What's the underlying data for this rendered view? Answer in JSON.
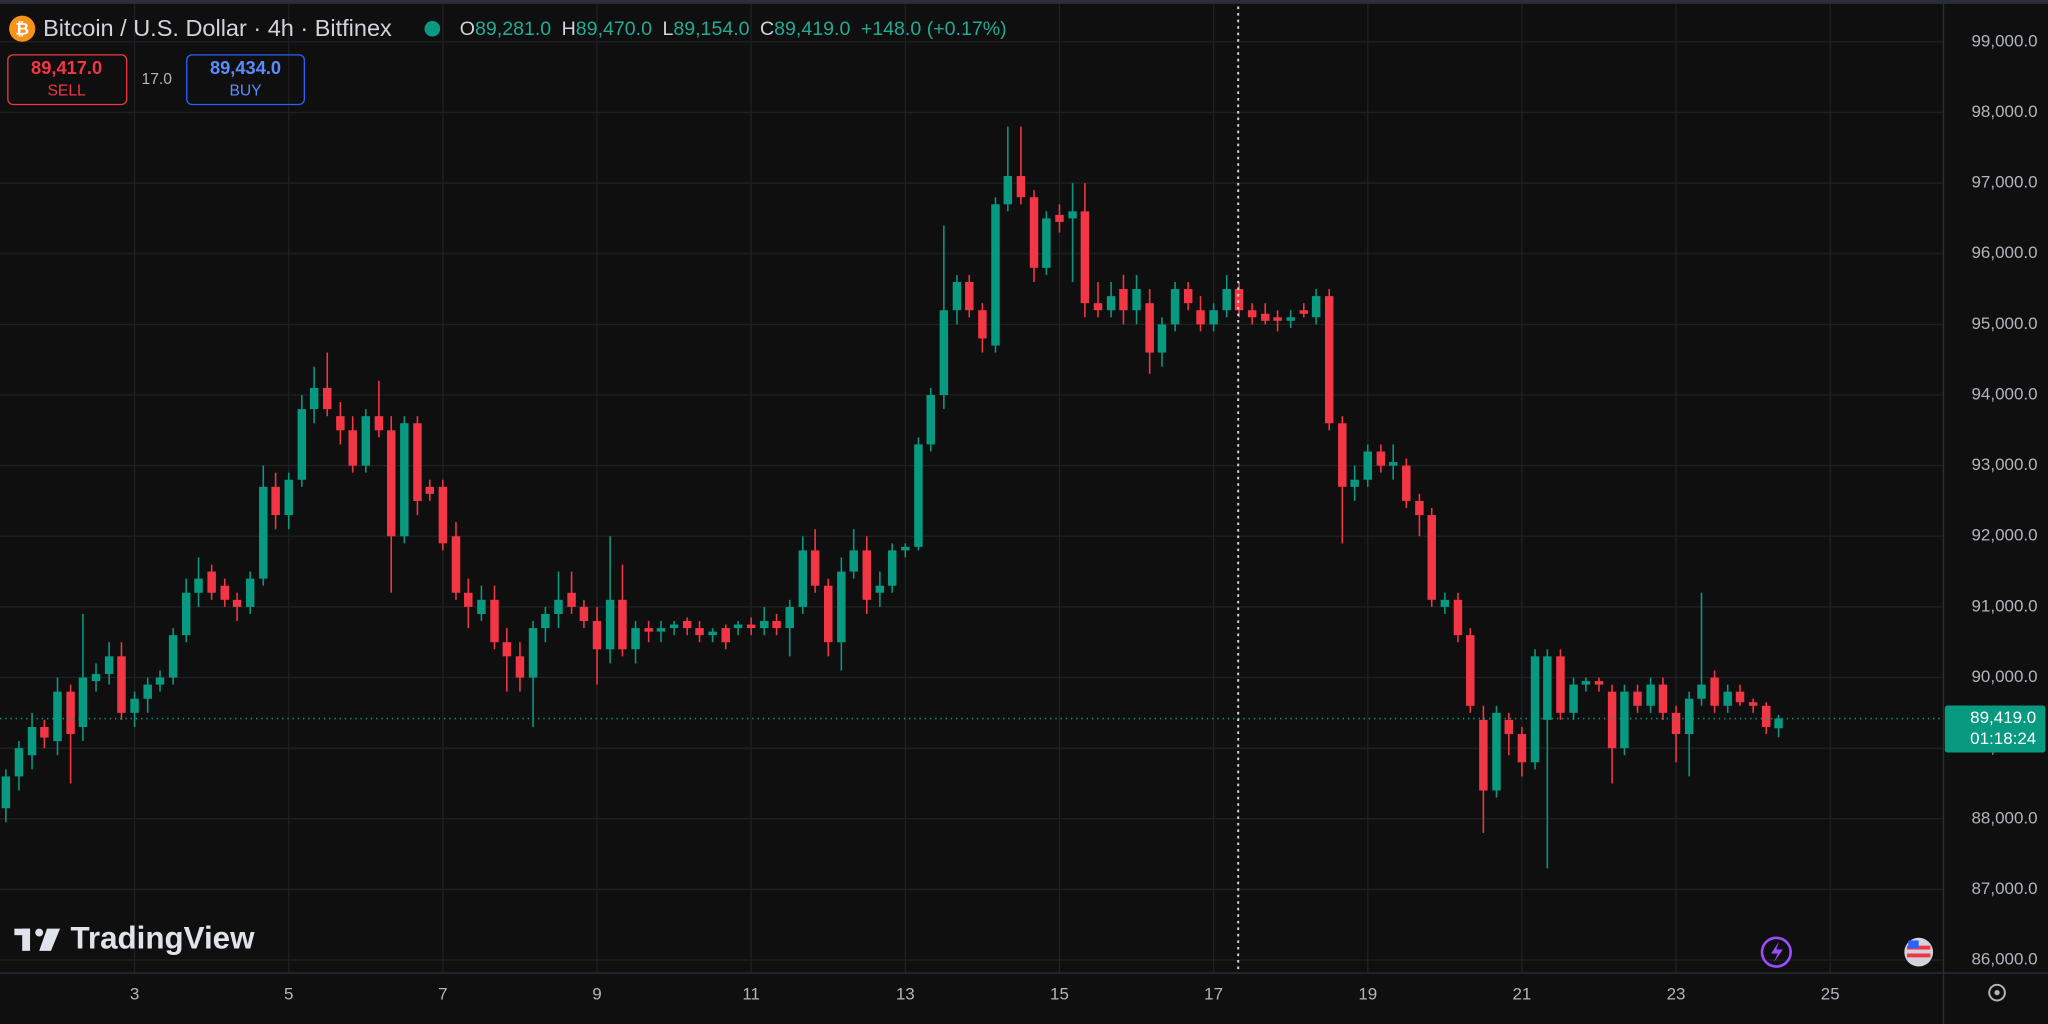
{
  "header": {
    "title": "Bitcoin / U.S. Dollar · 4h · Bitfinex",
    "ohlc": [
      {
        "key": "O",
        "value": 89281,
        "label": "89,281.0"
      },
      {
        "key": "H",
        "value": 89470,
        "label": "89,470.0"
      },
      {
        "key": "L",
        "value": 89154,
        "label": "89,154.0"
      },
      {
        "key": "C",
        "value": 89419,
        "label": "89,419.0"
      }
    ],
    "change": "+148.0 (+0.17%)"
  },
  "trade": {
    "sell": {
      "value": 89417,
      "label": "89,417.0",
      "action": "SELL"
    },
    "spread": {
      "value": 17,
      "label": "17.0"
    },
    "buy": {
      "value": 89434,
      "label": "89,434.0",
      "action": "BUY"
    }
  },
  "brand": "TradingView",
  "chart_data": {
    "type": "candlestick",
    "x": [
      1.33,
      1.5,
      1.67,
      1.83,
      2,
      2.17,
      2.33,
      2.5,
      2.67,
      2.83,
      3,
      3.17,
      3.33,
      3.5,
      3.67,
      3.83,
      4,
      4.17,
      4.33,
      4.5,
      4.67,
      4.83,
      5,
      5.17,
      5.33,
      5.5,
      5.67,
      5.83,
      6,
      6.17,
      6.33,
      6.5,
      6.67,
      6.83,
      7,
      7.17,
      7.33,
      7.5,
      7.67,
      7.83,
      8,
      8.17,
      8.33,
      8.5,
      8.67,
      8.83,
      9,
      9.17,
      9.33,
      9.5,
      9.67,
      9.83,
      10,
      10.17,
      10.33,
      10.5,
      10.67,
      10.83,
      11,
      11.17,
      11.33,
      11.5,
      11.67,
      11.83,
      12,
      12.17,
      12.33,
      12.5,
      12.67,
      12.83,
      13,
      13.17,
      13.33,
      13.5,
      13.67,
      13.83,
      14,
      14.17,
      14.33,
      14.5,
      14.67,
      14.83,
      15,
      15.17,
      15.33,
      15.5,
      15.67,
      15.83,
      16,
      16.17,
      16.33,
      16.5,
      16.67,
      16.83,
      17,
      17.17,
      17.33,
      17.5,
      17.67,
      17.83,
      18,
      18.17,
      18.33,
      18.5,
      18.67,
      18.83,
      19,
      19.17,
      19.33,
      19.5,
      19.67,
      19.83,
      20,
      20.17,
      20.33,
      20.5,
      20.67,
      20.83,
      21,
      21.17,
      21.33,
      21.5,
      21.67,
      21.83,
      22,
      22.17,
      22.33,
      22.5,
      22.67,
      22.83,
      23,
      23.17,
      23.33,
      23.5,
      23.67,
      23.83,
      24,
      24.17,
      24.33
    ],
    "open": [
      88150,
      88600,
      88900,
      89300,
      89100,
      89800,
      89300,
      89950,
      90050,
      90300,
      89500,
      89700,
      89900,
      90000,
      90600,
      91200,
      91500,
      91300,
      91100,
      91000,
      91400,
      92700,
      92300,
      92800,
      93800,
      94100,
      93700,
      93500,
      93000,
      93700,
      93500,
      92000,
      93600,
      92700,
      92700,
      92000,
      91200,
      90900,
      91100,
      90500,
      90300,
      90000,
      90700,
      90900,
      91200,
      91000,
      90800,
      90400,
      91100,
      90400,
      90700,
      90650,
      90700,
      90800,
      90700,
      90600,
      90700,
      90700,
      90750,
      90700,
      90800,
      90700,
      91000,
      91800,
      91300,
      90500,
      91500,
      91800,
      91200,
      91300,
      91800,
      91850,
      93300,
      94000,
      95200,
      95600,
      95200,
      94700,
      96700,
      97100,
      96800,
      95800,
      96550,
      96500,
      96600,
      95300,
      95200,
      95500,
      95200,
      95300,
      94600,
      95000,
      95500,
      95200,
      95000,
      95200,
      95500,
      95200,
      95150,
      95100,
      95050,
      95200,
      95100,
      95400,
      93600,
      92700,
      92800,
      93200,
      93000,
      93000,
      92500,
      92300,
      91000,
      91100,
      90600,
      89400,
      88400,
      89400,
      89200,
      88800,
      89400,
      90300,
      89500,
      89900,
      89950,
      89800,
      89000,
      89800,
      89600,
      89900,
      89500,
      89200,
      89700,
      90000,
      89600,
      89800,
      89650,
      89600,
      89281
    ],
    "high": [
      88700,
      89100,
      89500,
      89400,
      90000,
      89900,
      90900,
      90200,
      90500,
      90500,
      89800,
      90000,
      90100,
      90700,
      91400,
      91700,
      91600,
      91400,
      91200,
      91500,
      93000,
      92900,
      92900,
      94000,
      94400,
      94600,
      93900,
      93700,
      93800,
      94200,
      93700,
      93700,
      93700,
      92800,
      92800,
      92200,
      91400,
      91300,
      91300,
      90700,
      90500,
      90800,
      91000,
      91500,
      91500,
      91100,
      91000,
      92000,
      91600,
      90800,
      90800,
      90800,
      90800,
      90850,
      90800,
      90700,
      90750,
      90800,
      90850,
      91000,
      90900,
      91100,
      92000,
      92100,
      91400,
      91700,
      92100,
      92000,
      91500,
      91900,
      91900,
      93400,
      94100,
      96400,
      95700,
      95700,
      95300,
      96800,
      97800,
      97800,
      96900,
      96600,
      96700,
      97000,
      97000,
      95600,
      95600,
      95700,
      95700,
      95500,
      95100,
      95600,
      95600,
      95400,
      95300,
      95700,
      95600,
      95300,
      95300,
      95200,
      95200,
      95300,
      95500,
      95500,
      93700,
      93000,
      93300,
      93300,
      93300,
      93100,
      92600,
      92400,
      91200,
      91200,
      90700,
      89600,
      89600,
      89500,
      89300,
      90400,
      90400,
      90400,
      90000,
      90000,
      90000,
      89900,
      89900,
      89900,
      90000,
      90000,
      89600,
      89800,
      91200,
      90100,
      89900,
      89900,
      89700,
      89650,
      89470
    ],
    "low": [
      87950,
      88400,
      88700,
      89000,
      88900,
      88500,
      89100,
      89800,
      89900,
      89400,
      89300,
      89500,
      89800,
      89900,
      90500,
      91000,
      91100,
      91000,
      90800,
      90900,
      91300,
      92100,
      92100,
      92700,
      93600,
      93700,
      93300,
      92900,
      92900,
      93400,
      91200,
      91900,
      92300,
      92500,
      91800,
      91100,
      90700,
      90800,
      90400,
      89800,
      89800,
      89300,
      90500,
      90700,
      90900,
      90700,
      89900,
      90200,
      90300,
      90200,
      90500,
      90500,
      90600,
      90600,
      90500,
      90500,
      90400,
      90600,
      90600,
      90600,
      90600,
      90300,
      90900,
      91200,
      90300,
      90100,
      91400,
      90900,
      91000,
      91200,
      91700,
      91800,
      93200,
      93800,
      95000,
      95100,
      94600,
      94600,
      96600,
      96700,
      95600,
      95700,
      96300,
      95600,
      95100,
      95100,
      95100,
      95000,
      95000,
      94300,
      94400,
      94900,
      95200,
      94900,
      94900,
      95100,
      95100,
      95000,
      95000,
      94900,
      94950,
      95100,
      95000,
      93500,
      91900,
      92500,
      92700,
      92900,
      92800,
      92400,
      92000,
      91000,
      90900,
      90500,
      89500,
      87800,
      88300,
      88900,
      88600,
      88700,
      87300,
      89400,
      89400,
      89800,
      89800,
      88500,
      88900,
      89500,
      89500,
      89400,
      88800,
      88600,
      89600,
      89500,
      89500,
      89600,
      89500,
      89200,
      89154
    ],
    "close": [
      88600,
      89000,
      89300,
      89150,
      89800,
      89200,
      90000,
      90050,
      90300,
      89500,
      89700,
      89900,
      90000,
      90600,
      91200,
      91400,
      91200,
      91100,
      91000,
      91400,
      92700,
      92300,
      92800,
      93800,
      94100,
      93800,
      93500,
      93000,
      93700,
      93500,
      92000,
      93600,
      92500,
      92600,
      91900,
      91200,
      91000,
      91100,
      90500,
      90300,
      90000,
      90700,
      90900,
      91100,
      91000,
      90800,
      90400,
      91100,
      90400,
      90700,
      90650,
      90700,
      90750,
      90700,
      90600,
      90650,
      90500,
      90750,
      90700,
      90800,
      90700,
      91000,
      91800,
      91300,
      90500,
      91500,
      91800,
      91100,
      91300,
      91800,
      91850,
      93300,
      94000,
      95200,
      95600,
      95200,
      94800,
      96700,
      97100,
      96800,
      95800,
      96500,
      96450,
      96600,
      95300,
      95200,
      95400,
      95200,
      95500,
      94600,
      95000,
      95500,
      95300,
      95000,
      95200,
      95500,
      95200,
      95100,
      95050,
      95050,
      95100,
      95150,
      95400,
      93600,
      92700,
      92800,
      93200,
      93000,
      93050,
      92500,
      92300,
      91100,
      91100,
      90600,
      89600,
      88400,
      89500,
      89200,
      88800,
      90300,
      90300,
      89500,
      89900,
      89950,
      89900,
      89000,
      89800,
      89600,
      89900,
      89500,
      89200,
      89700,
      89900,
      89600,
      89800,
      89650,
      89600,
      89300,
      89419
    ],
    "xlim": [
      1.254,
      26.47
    ],
    "ylim": [
      85816,
      99592
    ],
    "xticks": [
      3,
      5,
      7,
      9,
      11,
      13,
      15,
      17,
      19,
      21,
      23,
      25
    ],
    "yticks": [
      {
        "value": 99000,
        "label": "99,000.0"
      },
      {
        "value": 98000,
        "label": "98,000.0"
      },
      {
        "value": 97000,
        "label": "97,000.0"
      },
      {
        "value": 96000,
        "label": "96,000.0"
      },
      {
        "value": 95000,
        "label": "95,000.0"
      },
      {
        "value": 94000,
        "label": "94,000.0"
      },
      {
        "value": 93000,
        "label": "93,000.0"
      },
      {
        "value": 92000,
        "label": "92,000.0"
      },
      {
        "value": 91000,
        "label": "91,000.0"
      },
      {
        "value": 90000,
        "label": "90,000.0"
      },
      {
        "value": 89000,
        "label": "89,000.0"
      },
      {
        "value": 88000,
        "label": "88,000.0"
      },
      {
        "value": 87000,
        "label": "87,000.0"
      },
      {
        "value": 86000,
        "label": "86,000.0"
      }
    ],
    "grid": true,
    "up_color": "#089981",
    "down_color": "#f23645",
    "last_price": {
      "value": 89419,
      "label": "89,419.0",
      "countdown": "01:18:24"
    }
  }
}
